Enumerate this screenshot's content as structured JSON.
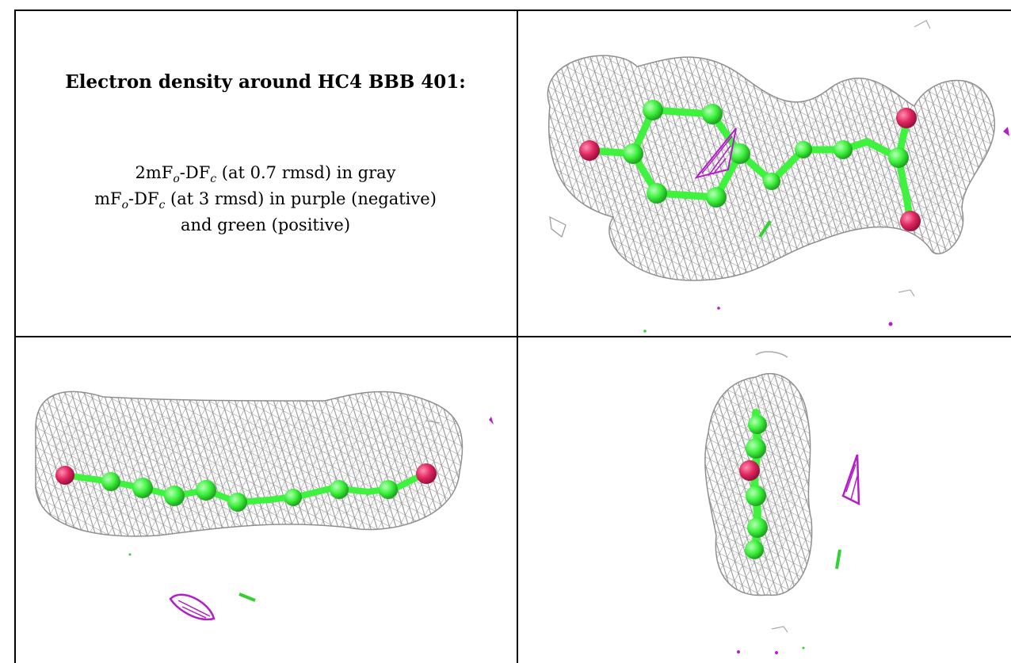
{
  "caption": {
    "title": "Electron density around HC4 BBB 401:",
    "line1": {
      "pre": "2mF",
      "sub1": "o",
      "mid": "-DF",
      "sub2": "c",
      "post": " (at 0.7 rmsd) in gray"
    },
    "line2": {
      "pre": "mF",
      "sub1": "o",
      "mid": "-DF",
      "sub2": "c",
      "post": " (at 3 rmsd) in purple (negative)"
    },
    "line3": "and green (positive)"
  },
  "colors": {
    "mesh_gray": "#8f8f8f",
    "carbon_green": "#3ef23e",
    "oxygen_red": "#e0285f",
    "negative_purple": "#b41ec8",
    "positive_green": "#32d232"
  },
  "panels": [
    {
      "name": "top-view"
    },
    {
      "name": "side-view"
    },
    {
      "name": "end-view"
    }
  ]
}
